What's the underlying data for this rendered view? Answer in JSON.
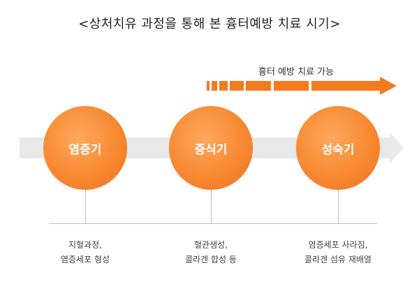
{
  "title": "<상처치유 과정을 통해 본 흉터예방 치료 시기>",
  "prevention": {
    "label": "흉터 예방 치료 가능"
  },
  "stages": [
    {
      "label": "염증기",
      "desc_line1": "지혈과정,",
      "desc_line2": "염증세포 형성"
    },
    {
      "label": "증식기",
      "desc_line1": "혈관생성,",
      "desc_line2": "콜라겐 합성 등"
    },
    {
      "label": "성숙기",
      "desc_line1": "염증세포 사라짐,",
      "desc_line2": "콜라겐 섬유 재배열"
    }
  ],
  "colors": {
    "accent": "#f47a20",
    "band": "#e9e9e9",
    "line": "#bdbdbd"
  }
}
